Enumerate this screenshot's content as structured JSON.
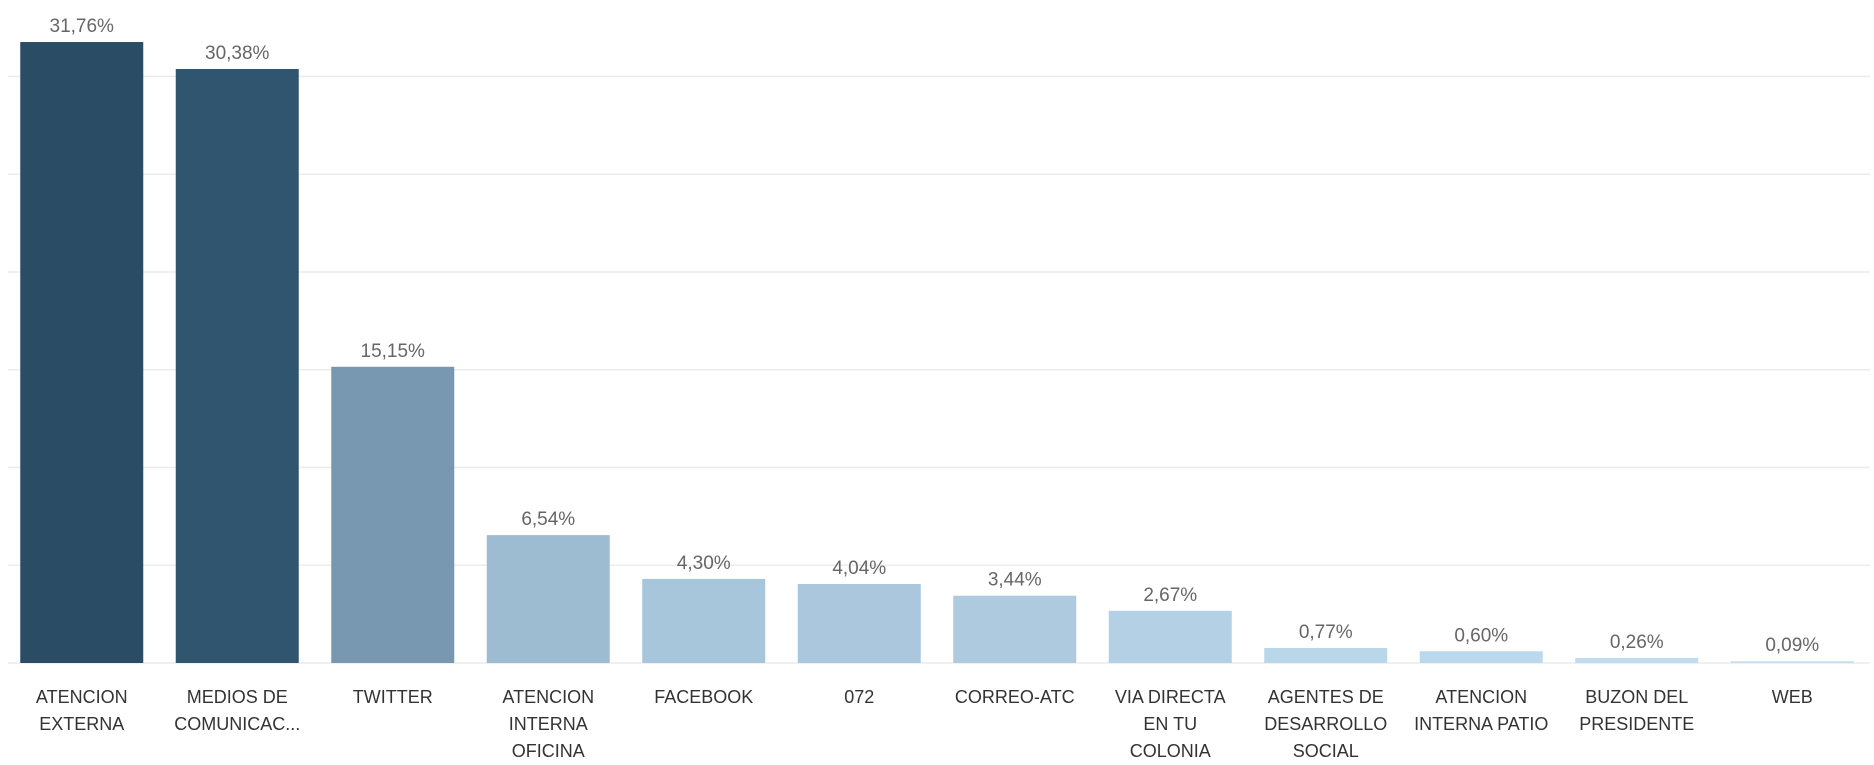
{
  "chart_data": {
    "type": "bar",
    "categories": [
      "ATENCION EXTERNA",
      "MEDIOS DE COMUNICAC...",
      "TWITTER",
      "ATENCION INTERNA OFICINA",
      "FACEBOOK",
      "072",
      "CORREO-ATC",
      "VIA DIRECTA EN TU COLONIA",
      "AGENTES DE DESARROLLO SOCIAL",
      "ATENCION INTERNA PATIO",
      "BUZON DEL PRESIDENTE",
      "WEB"
    ],
    "values": [
      31.76,
      30.38,
      15.15,
      6.54,
      4.3,
      4.04,
      3.44,
      2.67,
      0.77,
      0.6,
      0.26,
      0.09
    ],
    "value_labels": [
      "31,76%",
      "30,38%",
      "15,15%",
      "6,54%",
      "4,30%",
      "4,04%",
      "3,44%",
      "2,67%",
      "0,77%",
      "0,60%",
      "0,26%",
      "0,09%"
    ],
    "colors": [
      "#2b4c65",
      "#30556f",
      "#7897b0",
      "#9dbbd1",
      "#a7c5db",
      "#aac7dd",
      "#aecadf",
      "#b3d0e5",
      "#bad7ea",
      "#bcd8ec",
      "#c0dbee",
      "#c4def0"
    ],
    "ylim": [
      0,
      33.5
    ],
    "yticks": [
      0,
      5,
      10,
      15,
      20,
      25,
      30
    ],
    "grid": true
  }
}
